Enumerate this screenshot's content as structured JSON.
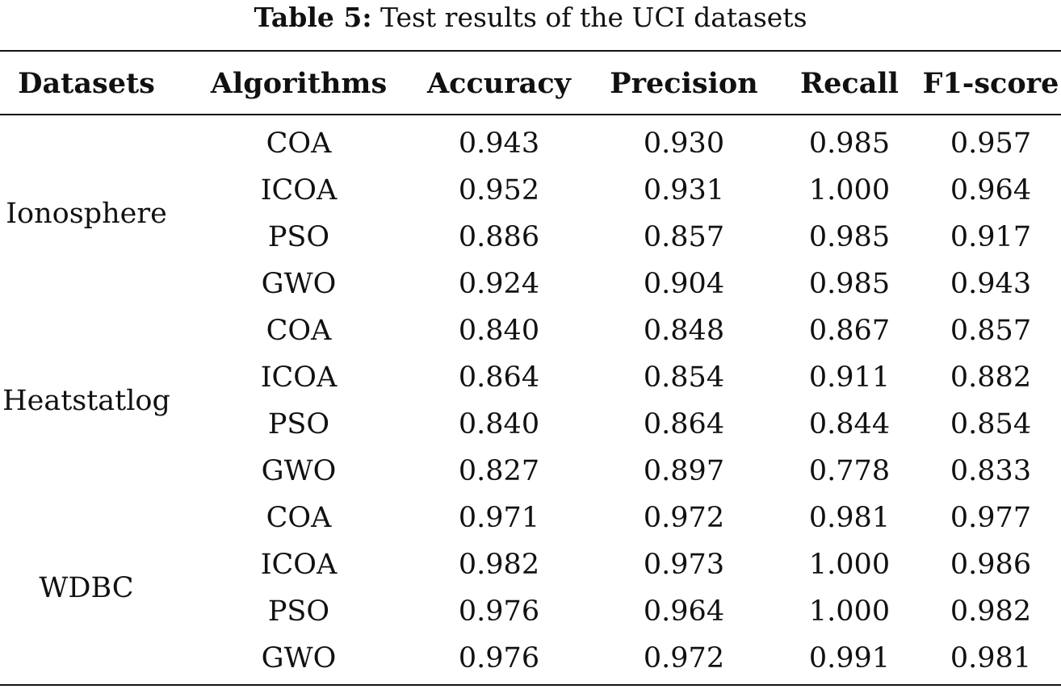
{
  "caption": {
    "label": "Table 5:",
    "text": "Test results of the UCI datasets"
  },
  "table": {
    "headers": [
      "Datasets",
      "Algorithms",
      "Accuracy",
      "Precision",
      "Recall",
      "F1-score"
    ],
    "groups": [
      {
        "dataset": "Ionosphere",
        "rows": [
          [
            "COA",
            "0.943",
            "0.930",
            "0.985",
            "0.957"
          ],
          [
            "ICOA",
            "0.952",
            "0.931",
            "1.000",
            "0.964"
          ],
          [
            "PSO",
            "0.886",
            "0.857",
            "0.985",
            "0.917"
          ],
          [
            "GWO",
            "0.924",
            "0.904",
            "0.985",
            "0.943"
          ]
        ]
      },
      {
        "dataset": "Heatstatlog",
        "rows": [
          [
            "COA",
            "0.840",
            "0.848",
            "0.867",
            "0.857"
          ],
          [
            "ICOA",
            "0.864",
            "0.854",
            "0.911",
            "0.882"
          ],
          [
            "PSO",
            "0.840",
            "0.864",
            "0.844",
            "0.854"
          ],
          [
            "GWO",
            "0.827",
            "0.897",
            "0.778",
            "0.833"
          ]
        ]
      },
      {
        "dataset": "WDBC",
        "rows": [
          [
            "COA",
            "0.971",
            "0.972",
            "0.981",
            "0.977"
          ],
          [
            "ICOA",
            "0.982",
            "0.973",
            "1.000",
            "0.986"
          ],
          [
            "PSO",
            "0.976",
            "0.964",
            "1.000",
            "0.982"
          ],
          [
            "GWO",
            "0.976",
            "0.972",
            "0.991",
            "0.981"
          ]
        ]
      }
    ]
  }
}
